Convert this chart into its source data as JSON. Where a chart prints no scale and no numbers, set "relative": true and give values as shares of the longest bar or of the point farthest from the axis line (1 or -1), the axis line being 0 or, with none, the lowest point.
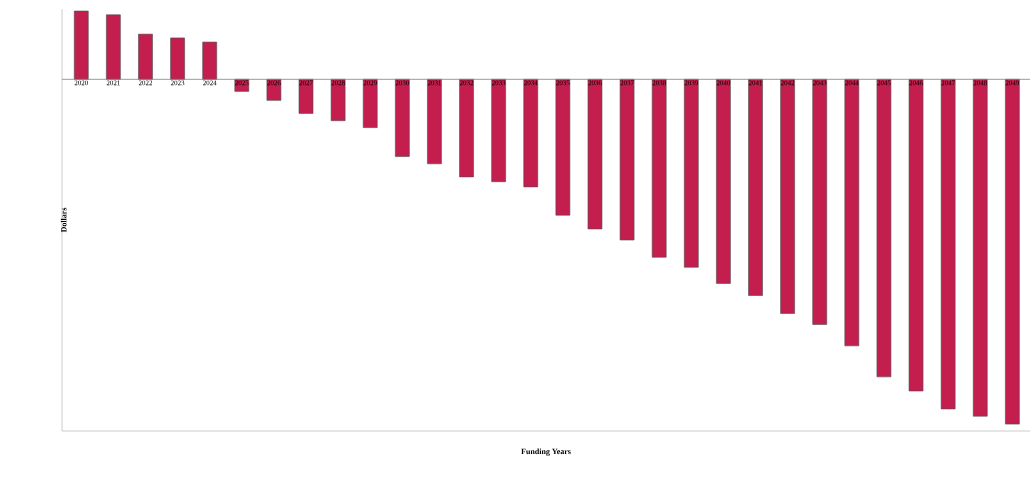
{
  "chart_data": {
    "type": "bar",
    "relative": true,
    "xlabel": "Funding Years",
    "ylabel": "Dollars",
    "color": "#c41e4f",
    "categories": [
      "2020",
      "2021",
      "2022",
      "2023",
      "2024",
      "2025",
      "2026",
      "2027",
      "2028",
      "2029",
      "2030",
      "2031",
      "2032",
      "2033",
      "2034",
      "2035",
      "2036",
      "2037",
      "2038",
      "2039",
      "2040",
      "2041",
      "2042",
      "2043",
      "2044",
      "2045",
      "2046",
      "2047",
      "2048",
      "2049"
    ],
    "values": [
      0.198,
      0.187,
      0.131,
      0.12,
      0.108,
      -0.035,
      -0.061,
      -0.099,
      -0.12,
      -0.14,
      -0.224,
      -0.245,
      -0.283,
      -0.297,
      -0.312,
      -0.394,
      -0.434,
      -0.466,
      -0.516,
      -0.545,
      -0.592,
      -0.627,
      -0.679,
      -0.711,
      -0.773,
      -0.863,
      -0.904,
      -0.956,
      -0.977,
      -1
    ]
  }
}
